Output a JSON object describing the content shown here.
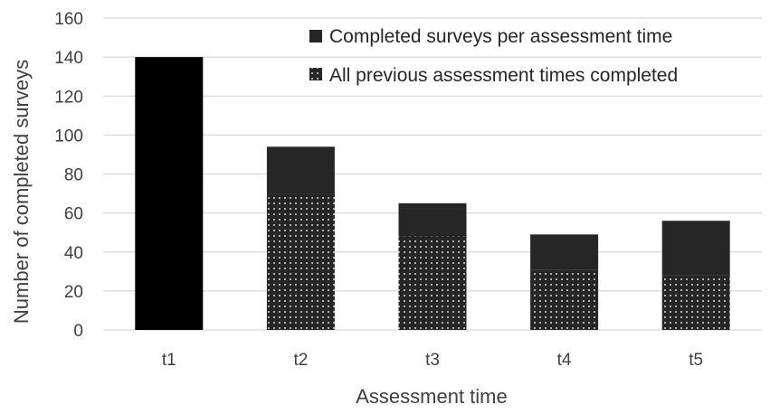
{
  "chart_data": {
    "type": "bar",
    "stacked": true,
    "categories": [
      "t1",
      "t2",
      "t3",
      "t4",
      "t5"
    ],
    "series": [
      {
        "name": "All previous assessment times completed",
        "pattern": "dotted",
        "values": [
          0,
          70,
          48,
          31,
          28
        ]
      },
      {
        "name": "Completed surveys per assessment time",
        "pattern": "solid",
        "values": [
          140,
          94,
          65,
          49,
          56
        ]
      }
    ],
    "xlabel": "Assessment time",
    "ylabel": "Number of completed surveys",
    "ylim": [
      0,
      160
    ],
    "yticks": [
      0,
      20,
      40,
      60,
      80,
      100,
      120,
      140,
      160
    ],
    "grid": true,
    "legend_position": "top-right",
    "colors": {
      "solid_bar": "#262626",
      "first_bar": "#000000",
      "dot": "#d9d9d9",
      "grid": "#d9d9d9",
      "text": "#404040"
    }
  }
}
